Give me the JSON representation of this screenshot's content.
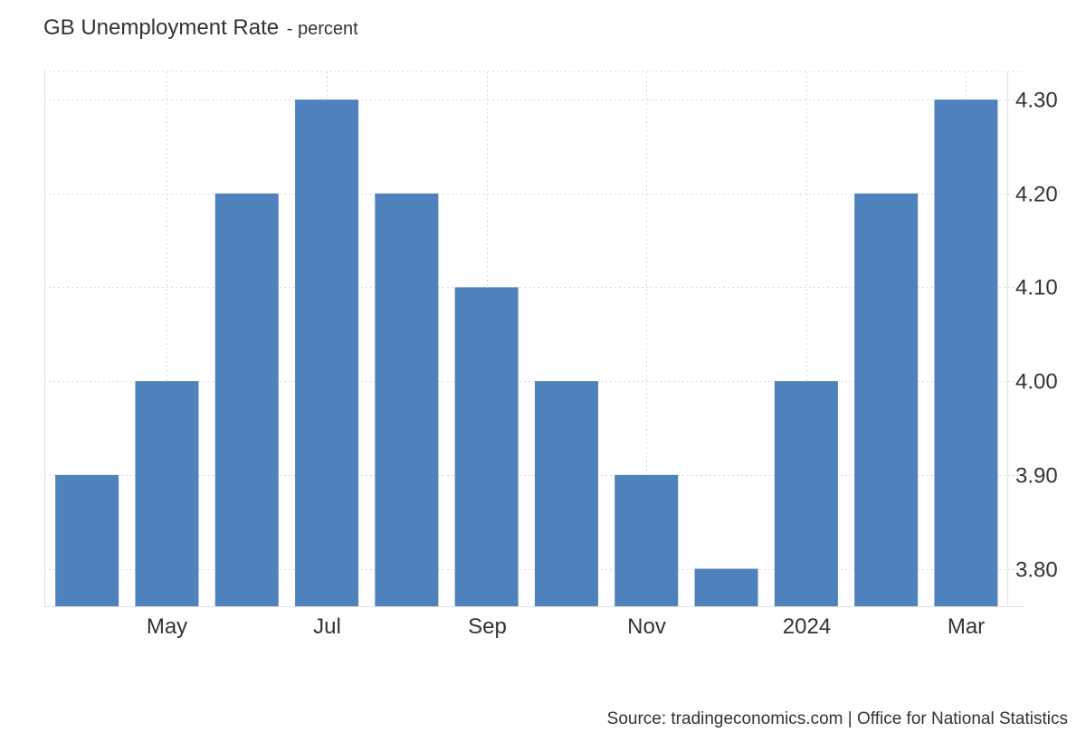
{
  "title": "GB Unemployment Rate",
  "subtitle": "- percent",
  "source": "Source: tradingeconomics.com | Office for National Statistics",
  "colors": {
    "bar": "#4f81bd",
    "grid": "#d9d9d9",
    "axis": "#e0e0e0",
    "text": "#333333"
  },
  "chart_data": {
    "type": "bar",
    "categories": [
      "2023-04",
      "2023-05",
      "2023-06",
      "2023-07",
      "2023-08",
      "2023-09",
      "2023-10",
      "2023-11",
      "2023-12",
      "2024-01",
      "2024-02",
      "2024-03"
    ],
    "x_tick_labels": [
      {
        "category": "2023-05",
        "label": "May"
      },
      {
        "category": "2023-07",
        "label": "Jul"
      },
      {
        "category": "2023-09",
        "label": "Sep"
      },
      {
        "category": "2023-11",
        "label": "Nov"
      },
      {
        "category": "2024-01",
        "label": "2024"
      },
      {
        "category": "2024-03",
        "label": "Mar"
      }
    ],
    "values": [
      3.9,
      4.0,
      4.2,
      4.3,
      4.2,
      4.1,
      4.0,
      3.9,
      3.8,
      4.0,
      4.2,
      4.3
    ],
    "y_ticks": [
      "3.80",
      "3.90",
      "4.00",
      "4.10",
      "4.20",
      "4.30"
    ],
    "ylim": [
      3.76,
      4.33
    ],
    "xlabel": "",
    "ylabel": "",
    "y_axis_side": "right",
    "grid": true,
    "grid_style": "dotted",
    "legend": "none"
  }
}
